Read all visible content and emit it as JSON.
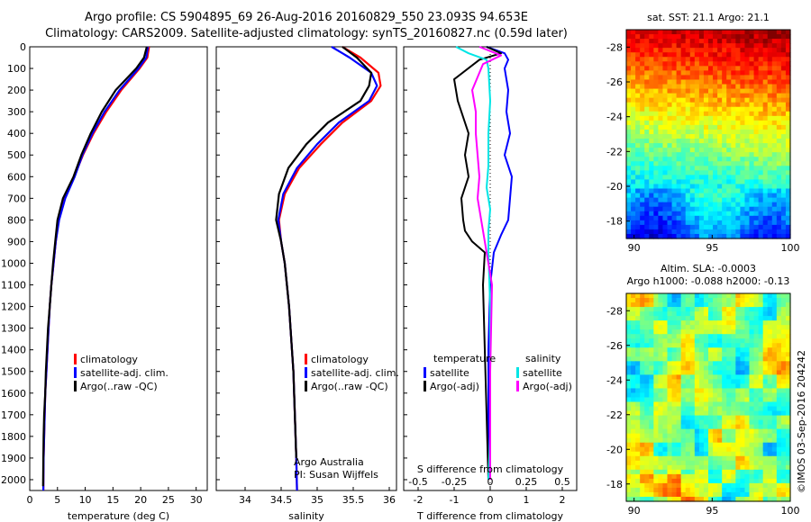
{
  "header": {
    "line1": "Argo profile: CS 5904895_69 26-Aug-2016 20160829_550 23.093S 94.653E",
    "line2": "Climatology: CARS2009. Satellite-adjusted climatology: synTS_20160827.nc (0.59d later)"
  },
  "watermark": "©IMOS 03-Sep-2016 204242",
  "colors": {
    "climatology": "#ff0000",
    "satellite": "#0000ff",
    "argo": "#000000",
    "sal_satellite": "#00e5e5",
    "sal_argo": "#ff00ff"
  },
  "chart_data": [
    {
      "type": "line",
      "xlabel": "temperature (deg C)",
      "xlim": [
        0,
        32
      ],
      "xticks": [
        "0",
        "5",
        "10",
        "15",
        "20",
        "25",
        "30"
      ],
      "xtick_values": [
        0,
        5,
        10,
        15,
        20,
        25,
        30
      ],
      "ylim": [
        0,
        2050
      ],
      "yticks": [
        "0",
        "100",
        "200",
        "300",
        "400",
        "500",
        "600",
        "700",
        "800",
        "900",
        "1000",
        "1100",
        "1200",
        "1300",
        "1400",
        "1500",
        "1600",
        "1700",
        "1800",
        "1900",
        "2000"
      ],
      "ytick_values": [
        0,
        100,
        200,
        300,
        400,
        500,
        600,
        700,
        800,
        900,
        1000,
        1100,
        1200,
        1300,
        1400,
        1500,
        1600,
        1700,
        1800,
        1900,
        2000
      ],
      "legend": [
        "climatology",
        "satellite-adj. clim.",
        "Argo(..raw -QC)"
      ],
      "series": [
        {
          "name": "climatology",
          "color": "#ff0000",
          "x": [
            21.5,
            21.2,
            19.8,
            16.5,
            13.8,
            11.5,
            9.6,
            8.0,
            6.3,
            5.2,
            4.7,
            4.3,
            3.9,
            3.6,
            3.4,
            3.2,
            3.0,
            2.8,
            2.7,
            2.6,
            2.5,
            2.45
          ],
          "y": [
            0,
            50,
            100,
            200,
            300,
            400,
            500,
            600,
            700,
            800,
            900,
            1000,
            1100,
            1200,
            1300,
            1400,
            1500,
            1600,
            1700,
            1800,
            1900,
            2050
          ]
        },
        {
          "name": "satellite-adj. clim.",
          "color": "#0000ff",
          "x": [
            21.3,
            21.0,
            19.6,
            16.2,
            13.5,
            11.3,
            9.5,
            8.1,
            6.4,
            5.3,
            4.7,
            4.3,
            3.9,
            3.6,
            3.4,
            3.2,
            3.0,
            2.8,
            2.7,
            2.6,
            2.5,
            2.45
          ],
          "y": [
            0,
            50,
            100,
            200,
            300,
            400,
            500,
            600,
            700,
            800,
            900,
            1000,
            1100,
            1200,
            1300,
            1400,
            1500,
            1600,
            1700,
            1800,
            1900,
            2050
          ]
        },
        {
          "name": "Argo(..raw -QC)",
          "color": "#000000",
          "x": [
            21.1,
            20.6,
            19.2,
            15.5,
            13.0,
            11.0,
            9.3,
            7.9,
            6.0,
            5.0,
            4.6,
            4.2,
            3.9,
            3.6,
            3.3,
            3.1,
            2.9,
            2.8,
            2.6,
            2.5,
            2.45,
            2.4
          ],
          "y": [
            0,
            50,
            100,
            200,
            300,
            400,
            500,
            600,
            700,
            800,
            900,
            1000,
            1100,
            1200,
            1300,
            1400,
            1500,
            1600,
            1700,
            1800,
            1900,
            2030
          ]
        }
      ]
    },
    {
      "type": "line",
      "xlabel": "salinity",
      "xlim": [
        33.6,
        36.1
      ],
      "xticks": [
        "34",
        "34.5",
        "35",
        "35.5",
        "36"
      ],
      "xtick_values": [
        34,
        34.5,
        35,
        35.5,
        36
      ],
      "ylim": [
        0,
        2050
      ],
      "legend": [
        "climatology",
        "satellite-adj. clim.",
        "Argo(..raw -QC)"
      ],
      "annotation": [
        "Argo Australia",
        "PI: Susan Wijffels"
      ],
      "series": [
        {
          "name": "climatology",
          "color": "#ff0000",
          "x": [
            35.35,
            35.6,
            35.85,
            35.88,
            35.75,
            35.35,
            35.05,
            34.75,
            34.55,
            34.47,
            34.5,
            34.55,
            34.58,
            34.61,
            34.63,
            34.65,
            34.67,
            34.68,
            34.69,
            34.7,
            34.71,
            34.72
          ],
          "y": [
            0,
            50,
            120,
            180,
            250,
            350,
            450,
            560,
            680,
            800,
            900,
            1000,
            1100,
            1200,
            1300,
            1400,
            1500,
            1600,
            1700,
            1800,
            1900,
            2050
          ]
        },
        {
          "name": "satellite-adj. clim.",
          "color": "#0000ff",
          "x": [
            35.2,
            35.45,
            35.75,
            35.83,
            35.72,
            35.3,
            35.0,
            34.72,
            34.53,
            34.46,
            34.5,
            34.55,
            34.58,
            34.61,
            34.63,
            34.65,
            34.67,
            34.68,
            34.69,
            34.7,
            34.71,
            34.72
          ],
          "y": [
            0,
            50,
            120,
            180,
            250,
            350,
            450,
            560,
            680,
            800,
            900,
            1000,
            1100,
            1200,
            1300,
            1400,
            1500,
            1600,
            1700,
            1800,
            1900,
            2050
          ]
        },
        {
          "name": "Argo(..raw -QC)",
          "color": "#000000",
          "x": [
            35.35,
            35.55,
            35.75,
            35.72,
            35.6,
            35.15,
            34.85,
            34.6,
            34.47,
            34.43,
            34.5,
            34.55,
            34.58,
            34.61,
            34.63,
            34.65,
            34.67,
            34.68,
            34.69,
            34.7,
            34.71
          ],
          "y": [
            0,
            50,
            120,
            180,
            250,
            350,
            450,
            560,
            680,
            800,
            900,
            1000,
            1100,
            1200,
            1300,
            1400,
            1500,
            1600,
            1700,
            1800,
            1900
          ]
        }
      ]
    },
    {
      "type": "line",
      "xlabel": "T difference from climatology",
      "xlabel_top": "S difference from climatology",
      "xlim": [
        -2.4,
        2.4
      ],
      "xticks": [
        "-2",
        "-1",
        "0",
        "1",
        "2"
      ],
      "xtick_values": [
        -2,
        -1,
        0,
        1,
        2
      ],
      "xticks_top": [
        "-0.5",
        "-0.25",
        "0",
        "0.25",
        "0.5"
      ],
      "xtick_top_values": [
        -0.5,
        -0.25,
        0,
        0.25,
        0.5
      ],
      "ylim": [
        0,
        2050
      ],
      "legend_temperature": {
        "title": "temperature",
        "items": [
          "satellite",
          "Argo(-adj)"
        ]
      },
      "legend_salinity": {
        "title": "salinity",
        "items": [
          "satellite",
          "Argo(-adj)"
        ]
      },
      "series": [
        {
          "name": "satellite",
          "color": "#0000ff",
          "x": [
            -0.1,
            0.4,
            0.5,
            0.4,
            0.5,
            0.45,
            0.55,
            0.4,
            0.6,
            0.55,
            0.5,
            0.3,
            0.1,
            0,
            -0.05,
            -0.05,
            -0.05
          ],
          "y": [
            0,
            30,
            60,
            100,
            200,
            300,
            400,
            500,
            600,
            700,
            800,
            870,
            950,
            1100,
            1400,
            1700,
            2000
          ]
        },
        {
          "name": "Argo(-adj)",
          "color": "#000000",
          "x": [
            -0.1,
            0.3,
            -0.3,
            -1.0,
            -0.9,
            -0.6,
            -0.7,
            -0.6,
            -0.8,
            -0.75,
            -0.7,
            -0.5,
            -0.15,
            -0.2,
            -0.15,
            -0.1,
            -0.05
          ],
          "y": [
            0,
            30,
            60,
            150,
            250,
            400,
            500,
            600,
            700,
            800,
            850,
            900,
            950,
            1100,
            1400,
            1700,
            2000
          ]
        },
        {
          "name": "salinity satellite",
          "color": "#00e5e5",
          "x": [
            -0.95,
            -0.6,
            -0.1,
            -0.05,
            0.0,
            -0.05,
            -0.05,
            -0.1,
            0.0,
            -0.05,
            -0.05,
            0.0,
            0.0,
            0.0,
            -0.05
          ],
          "y": [
            0,
            30,
            60,
            100,
            250,
            400,
            550,
            650,
            750,
            850,
            950,
            1200,
            1500,
            1800,
            2000
          ]
        },
        {
          "name": "salinity Argo(-adj)",
          "color": "#ff00ff",
          "x": [
            -0.3,
            0.3,
            -0.2,
            -0.5,
            -0.4,
            -0.4,
            -0.35,
            -0.3,
            -0.35,
            -0.25,
            -0.2,
            -0.15,
            0.05,
            0.0,
            0.0
          ],
          "y": [
            0,
            40,
            80,
            200,
            300,
            400,
            500,
            600,
            700,
            800,
            850,
            900,
            1100,
            1500,
            2000
          ]
        }
      ]
    },
    {
      "type": "heatmap",
      "title": "sat. SST: 21.1  Argo: 21.1",
      "xlim": [
        89.5,
        100
      ],
      "xticks": [
        "90",
        "95",
        "100"
      ],
      "xtick_values": [
        90,
        95,
        100
      ],
      "ylim": [
        -29,
        -17
      ],
      "yticks": [
        "-18",
        "-20",
        "-22",
        "-24",
        "-26",
        "-28"
      ],
      "ytick_values": [
        -18,
        -20,
        -22,
        -24,
        -26,
        -28
      ],
      "colormap": "jet"
    },
    {
      "type": "heatmap",
      "title": [
        "Altim. SLA: -0.0003",
        "Argo h1000: -0.088 h2000: -0.13"
      ],
      "xlim": [
        89.5,
        100
      ],
      "xticks": [
        "90",
        "95",
        "100"
      ],
      "xtick_values": [
        90,
        95,
        100
      ],
      "ylim": [
        -29,
        -17
      ],
      "yticks": [
        "-18",
        "-20",
        "-22",
        "-24",
        "-26",
        "-28"
      ],
      "ytick_values": [
        -18,
        -20,
        -22,
        -24,
        -26,
        -28
      ],
      "colormap": "jet"
    }
  ]
}
